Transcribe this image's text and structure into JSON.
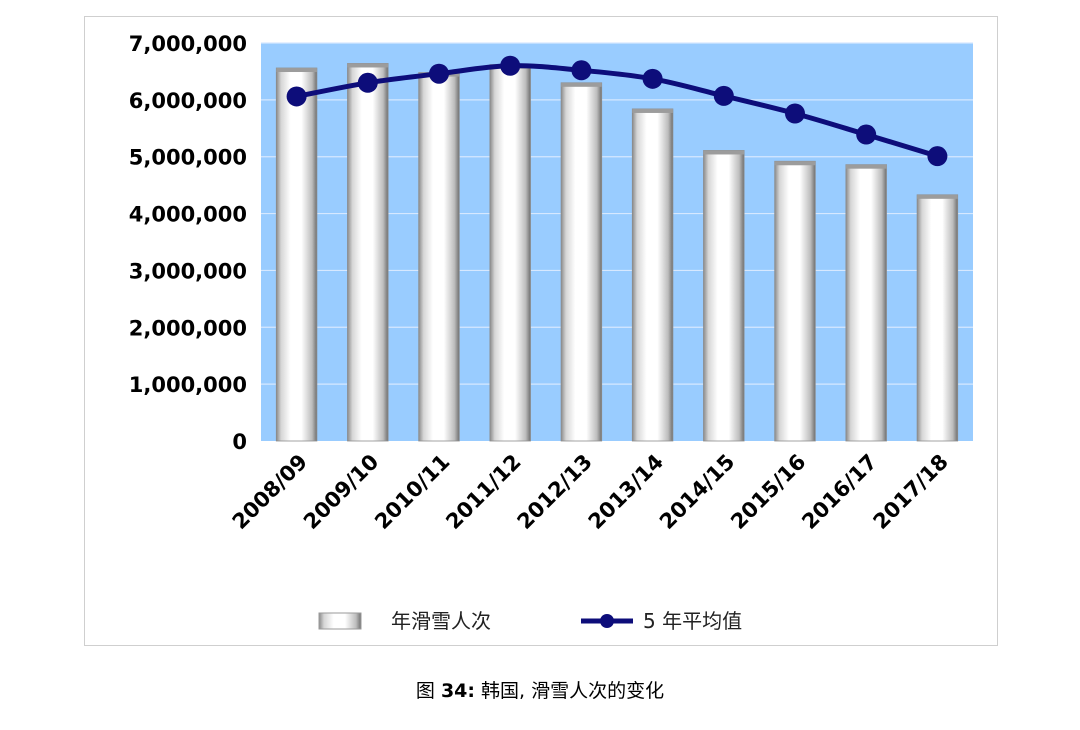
{
  "chart_data": {
    "type": "bar",
    "categories": [
      "2008/09",
      "2009/10",
      "2010/11",
      "2011/12",
      "2012/13",
      "2013/14",
      "2014/15",
      "2015/16",
      "2016/17",
      "2017/18"
    ],
    "series": [
      {
        "name": "年滑雪人次",
        "type": "bar",
        "color": "#ffffff",
        "values": [
          6560000,
          6640000,
          6480000,
          6620000,
          6300000,
          5840000,
          5110000,
          4920000,
          4860000,
          4330000
        ]
      },
      {
        "name": "5 年平均值",
        "type": "line",
        "color": "#0d0d7a",
        "values": [
          6060000,
          6300000,
          6460000,
          6600000,
          6520000,
          6370000,
          6070000,
          5760000,
          5390000,
          5010000
        ]
      }
    ],
    "ylim": [
      0,
      7000000
    ],
    "yticks": [
      "0",
      "1,000,000",
      "2,000,000",
      "3,000,000",
      "4,000,000",
      "5,000,000",
      "6,000,000",
      "7,000,000"
    ],
    "plot_background": "#99ccff",
    "grid": true,
    "legend_position": "bottom"
  },
  "caption": {
    "prefix": "图 ",
    "number": "34:",
    "text": " 韩国, 滑雪人次的变化"
  }
}
